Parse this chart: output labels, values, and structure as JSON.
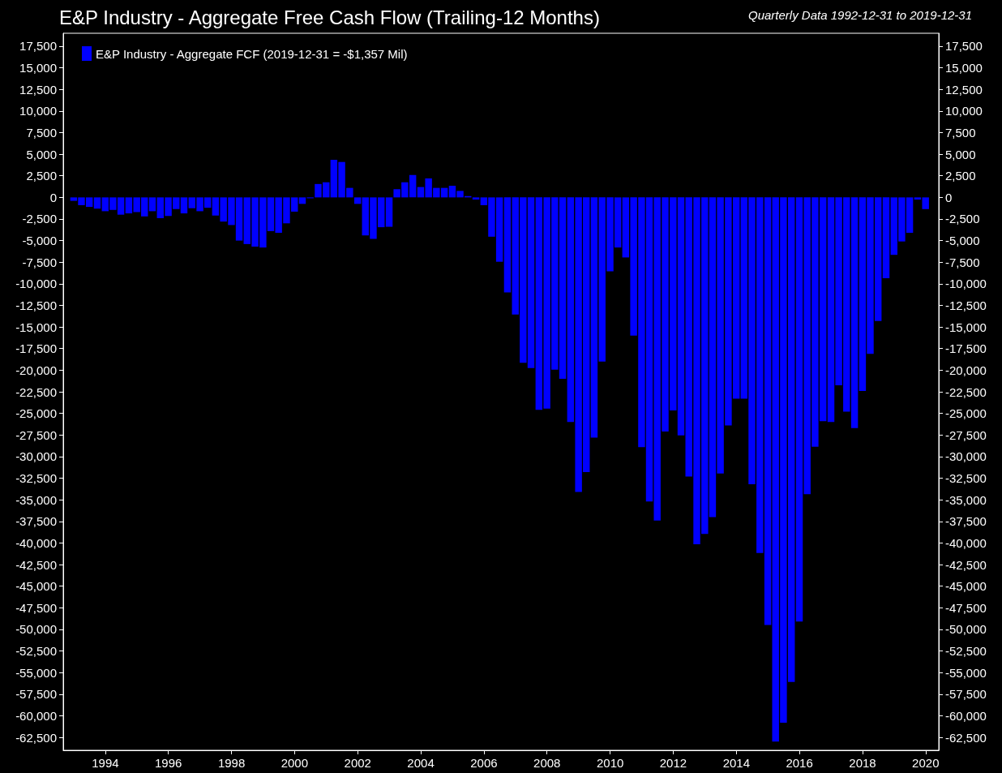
{
  "chart_data": {
    "type": "bar",
    "title": "E&P Industry - Aggregate Free Cash Flow (Trailing-12 Months)",
    "subtitle": "Quarterly Data 1992-12-31 to 2019-12-31",
    "x": [
      "1992-12-31",
      "1993-03-31",
      "1993-06-30",
      "1993-09-30",
      "1993-12-31",
      "1994-03-31",
      "1994-06-30",
      "1994-09-30",
      "1994-12-31",
      "1995-03-31",
      "1995-06-30",
      "1995-09-30",
      "1995-12-31",
      "1996-03-31",
      "1996-06-30",
      "1996-09-30",
      "1996-12-31",
      "1997-03-31",
      "1997-06-30",
      "1997-09-30",
      "1997-12-31",
      "1998-03-31",
      "1998-06-30",
      "1998-09-30",
      "1998-12-31",
      "1999-03-31",
      "1999-06-30",
      "1999-09-30",
      "1999-12-31",
      "2000-03-31",
      "2000-06-30",
      "2000-09-30",
      "2000-12-31",
      "2001-03-31",
      "2001-06-30",
      "2001-09-30",
      "2001-12-31",
      "2002-03-31",
      "2002-06-30",
      "2002-09-30",
      "2002-12-31",
      "2003-03-31",
      "2003-06-30",
      "2003-09-30",
      "2003-12-31",
      "2004-03-31",
      "2004-06-30",
      "2004-09-30",
      "2004-12-31",
      "2005-03-31",
      "2005-06-30",
      "2005-09-30",
      "2005-12-31",
      "2006-03-31",
      "2006-06-30",
      "2006-09-30",
      "2006-12-31",
      "2007-03-31",
      "2007-06-30",
      "2007-09-30",
      "2007-12-31",
      "2008-03-31",
      "2008-06-30",
      "2008-09-30",
      "2008-12-31",
      "2009-03-31",
      "2009-06-30",
      "2009-09-30",
      "2009-12-31",
      "2010-03-31",
      "2010-06-30",
      "2010-09-30",
      "2010-12-31",
      "2011-03-31",
      "2011-06-30",
      "2011-09-30",
      "2011-12-31",
      "2012-03-31",
      "2012-06-30",
      "2012-09-30",
      "2012-12-31",
      "2013-03-31",
      "2013-06-30",
      "2013-09-30",
      "2013-12-31",
      "2014-03-31",
      "2014-06-30",
      "2014-09-30",
      "2014-12-31",
      "2015-03-31",
      "2015-06-30",
      "2015-09-30",
      "2015-12-31",
      "2016-03-31",
      "2016-06-30",
      "2016-09-30",
      "2016-12-31",
      "2017-03-31",
      "2017-06-30",
      "2017-09-30",
      "2017-12-31",
      "2018-03-31",
      "2018-06-30",
      "2018-09-30",
      "2018-12-31",
      "2019-03-31",
      "2019-06-30",
      "2019-09-30",
      "2019-12-31"
    ],
    "series": [
      {
        "name": "E&P Industry - Aggregate FCF (2019-12-31 = -$1,357 Mil)",
        "color": "#0000ff",
        "values": [
          -400,
          -900,
          -1100,
          -1300,
          -1600,
          -1450,
          -2000,
          -1850,
          -1700,
          -2200,
          -1600,
          -2400,
          -2150,
          -1350,
          -1850,
          -1250,
          -1600,
          -1200,
          -2100,
          -2800,
          -3200,
          -5000,
          -5400,
          -5700,
          -5800,
          -3900,
          -4100,
          -3000,
          -1650,
          -750,
          -100,
          1550,
          1750,
          4350,
          4100,
          1100,
          -750,
          -4400,
          -4800,
          -3450,
          -3400,
          950,
          1750,
          2600,
          1200,
          2200,
          1100,
          1100,
          1350,
          750,
          150,
          -250,
          -900,
          -4550,
          -7450,
          -11000,
          -13550,
          -19150,
          -19750,
          -24600,
          -24450,
          -19950,
          -21000,
          -26000,
          -34100,
          -31800,
          -27800,
          -19000,
          -8550,
          -5800,
          -6950,
          -16000,
          -28900,
          -35200,
          -37400,
          -27100,
          -24650,
          -27550,
          -32300,
          -40150,
          -38950,
          -37000,
          -31950,
          -26400,
          -23300,
          -23300,
          -33200,
          -41150,
          -49500,
          -63000,
          -60800,
          -56100,
          -49100,
          -34350,
          -28850,
          -25900,
          -26000,
          -21750,
          -24800,
          -26700,
          -22400,
          -18100,
          -14300,
          -9350,
          -6650,
          -5100,
          -4100,
          -250,
          -1357
        ]
      }
    ],
    "xlim": [
      "1992-09-01",
      "2020-06-01"
    ],
    "xticks": [
      "1994",
      "1996",
      "1998",
      "2000",
      "2002",
      "2004",
      "2006",
      "2008",
      "2010",
      "2012",
      "2014",
      "2016",
      "2018",
      "2020"
    ],
    "ylim": [
      -64000,
      19000
    ],
    "yticks": [
      {
        "value": -62500,
        "label": "-62,500"
      },
      {
        "value": -60000,
        "label": "-60,000"
      },
      {
        "value": -57500,
        "label": "-57,500"
      },
      {
        "value": -55000,
        "label": "-55,000"
      },
      {
        "value": -52500,
        "label": "-52,500"
      },
      {
        "value": -50000,
        "label": "-50,000"
      },
      {
        "value": -47500,
        "label": "-47,500"
      },
      {
        "value": -45000,
        "label": "-45,000"
      },
      {
        "value": -42500,
        "label": "-42,500"
      },
      {
        "value": -40000,
        "label": "-40,000"
      },
      {
        "value": -37500,
        "label": "-37,500"
      },
      {
        "value": -35000,
        "label": "-35,000"
      },
      {
        "value": -32500,
        "label": "-32,500"
      },
      {
        "value": -30000,
        "label": "-30,000"
      },
      {
        "value": -27500,
        "label": "-27,500"
      },
      {
        "value": -25000,
        "label": "-25,000"
      },
      {
        "value": -22500,
        "label": "-22,500"
      },
      {
        "value": -20000,
        "label": "-20,000"
      },
      {
        "value": -17500,
        "label": "-17,500"
      },
      {
        "value": -15000,
        "label": "-15,000"
      },
      {
        "value": -12500,
        "label": "-12,500"
      },
      {
        "value": -10000,
        "label": "-10,000"
      },
      {
        "value": -7500,
        "label": "-7,500"
      },
      {
        "value": -5000,
        "label": "-5,000"
      },
      {
        "value": -2500,
        "label": "-2,500"
      },
      0,
      {
        "value": 2500,
        "label": "2,500"
      },
      {
        "value": 5000,
        "label": "5,000"
      },
      {
        "value": 7500,
        "label": "7,500"
      },
      {
        "value": 10000,
        "label": "10,000"
      },
      {
        "value": 12500,
        "label": "12,500"
      },
      {
        "value": 15000,
        "label": "15,000"
      },
      {
        "value": 17500,
        "label": "17,500"
      }
    ],
    "y2lim": [
      -64000,
      19000
    ],
    "y2ticks": [
      {
        "value": -62500,
        "label": "-62,500"
      },
      {
        "value": -60000,
        "label": "-60,000"
      },
      {
        "value": -57500,
        "label": "-57,500"
      },
      {
        "value": -55000,
        "label": "-55,000"
      },
      {
        "value": -52500,
        "label": "-52,500"
      },
      {
        "value": -50000,
        "label": "-50,000"
      },
      {
        "value": -47500,
        "label": "-47,500"
      },
      {
        "value": -45000,
        "label": "-45,000"
      },
      {
        "value": -42500,
        "label": "-42,500"
      },
      {
        "value": -40000,
        "label": "-40,000"
      },
      {
        "value": -37500,
        "label": "-37,500"
      },
      {
        "value": -35000,
        "label": "-35,000"
      },
      {
        "value": -32500,
        "label": "-32,500"
      },
      {
        "value": -30000,
        "label": "-30,000"
      },
      {
        "value": -27500,
        "label": "-27,500"
      },
      {
        "value": -25000,
        "label": "-25,000"
      },
      {
        "value": -22500,
        "label": "-22,500"
      },
      {
        "value": -20000,
        "label": "-20,000"
      },
      {
        "value": -17500,
        "label": "-17,500"
      },
      {
        "value": -15000,
        "label": "-15,000"
      },
      {
        "value": -12500,
        "label": "-12,500"
      },
      {
        "value": -10000,
        "label": "-10,000"
      },
      {
        "value": -7500,
        "label": "-7,500"
      },
      {
        "value": -5000,
        "label": "-5,000"
      },
      {
        "value": -2500,
        "label": "-2,500"
      },
      0,
      {
        "value": 2500,
        "label": "2,500"
      },
      {
        "value": 5000,
        "label": "5,000"
      },
      {
        "value": 7500,
        "label": "7,500"
      },
      {
        "value": 10000,
        "label": "10,000"
      },
      {
        "value": 12500,
        "label": "12,500"
      },
      {
        "value": 15000,
        "label": "15,000"
      },
      {
        "value": 17500,
        "label": "17,500"
      }
    ],
    "grid": false,
    "legend": "top left"
  }
}
